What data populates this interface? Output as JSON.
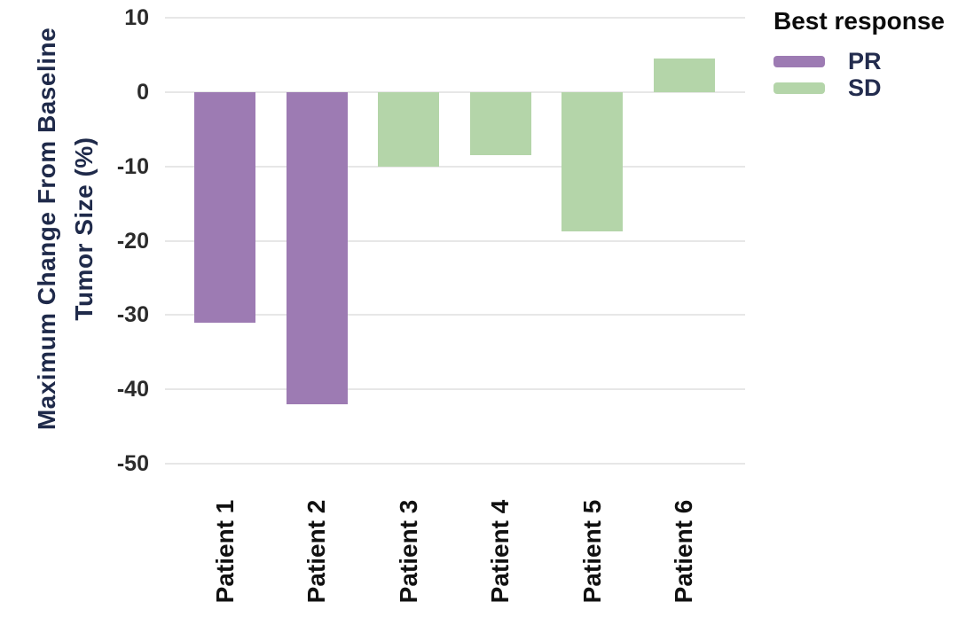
{
  "figure": {
    "background": "#ffffff"
  },
  "chart_data": {
    "type": "bar",
    "title": "",
    "ylabel": "Maximum Change From Baseline Tumor Size (%)",
    "ylabel_lines": [
      "Maximum Change From Baseline",
      "Tumor Size (%)"
    ],
    "xlabel": "",
    "ylim": [
      -50,
      10
    ],
    "yticks": [
      10,
      0,
      -10,
      -20,
      -30,
      -40,
      -50
    ],
    "grid": true,
    "legend_position": "top-right",
    "categories": [
      "Patient 1",
      "Patient 2",
      "Patient 3",
      "Patient 4",
      "Patient 5",
      "Patient 6"
    ],
    "bars": [
      {
        "category": "Patient 1",
        "value": -31,
        "response": "PR"
      },
      {
        "category": "Patient 2",
        "value": -42,
        "response": "PR"
      },
      {
        "category": "Patient 3",
        "value": -10,
        "response": "SD"
      },
      {
        "category": "Patient 4",
        "value": -8.5,
        "response": "SD"
      },
      {
        "category": "Patient 5",
        "value": -18.7,
        "response": "SD"
      },
      {
        "category": "Patient 6",
        "value": 4.5,
        "response": "SD"
      }
    ],
    "group_colors": {
      "PR": "#9d7bb3",
      "SD": "#b4d5a9"
    },
    "legend": {
      "title": "Best response",
      "entries": [
        {
          "label": "PR",
          "color": "#9d7bb3"
        },
        {
          "label": "SD",
          "color": "#b4d5a9"
        }
      ]
    },
    "colors": {
      "axis_title_text": "#1f2a4a",
      "tick_text": "#2b2b2b",
      "x_label_text": "#111111",
      "legend_title_text": "#0c0c0c",
      "legend_label_text": "#232c4e",
      "gridline": "#e7e7e7"
    }
  }
}
